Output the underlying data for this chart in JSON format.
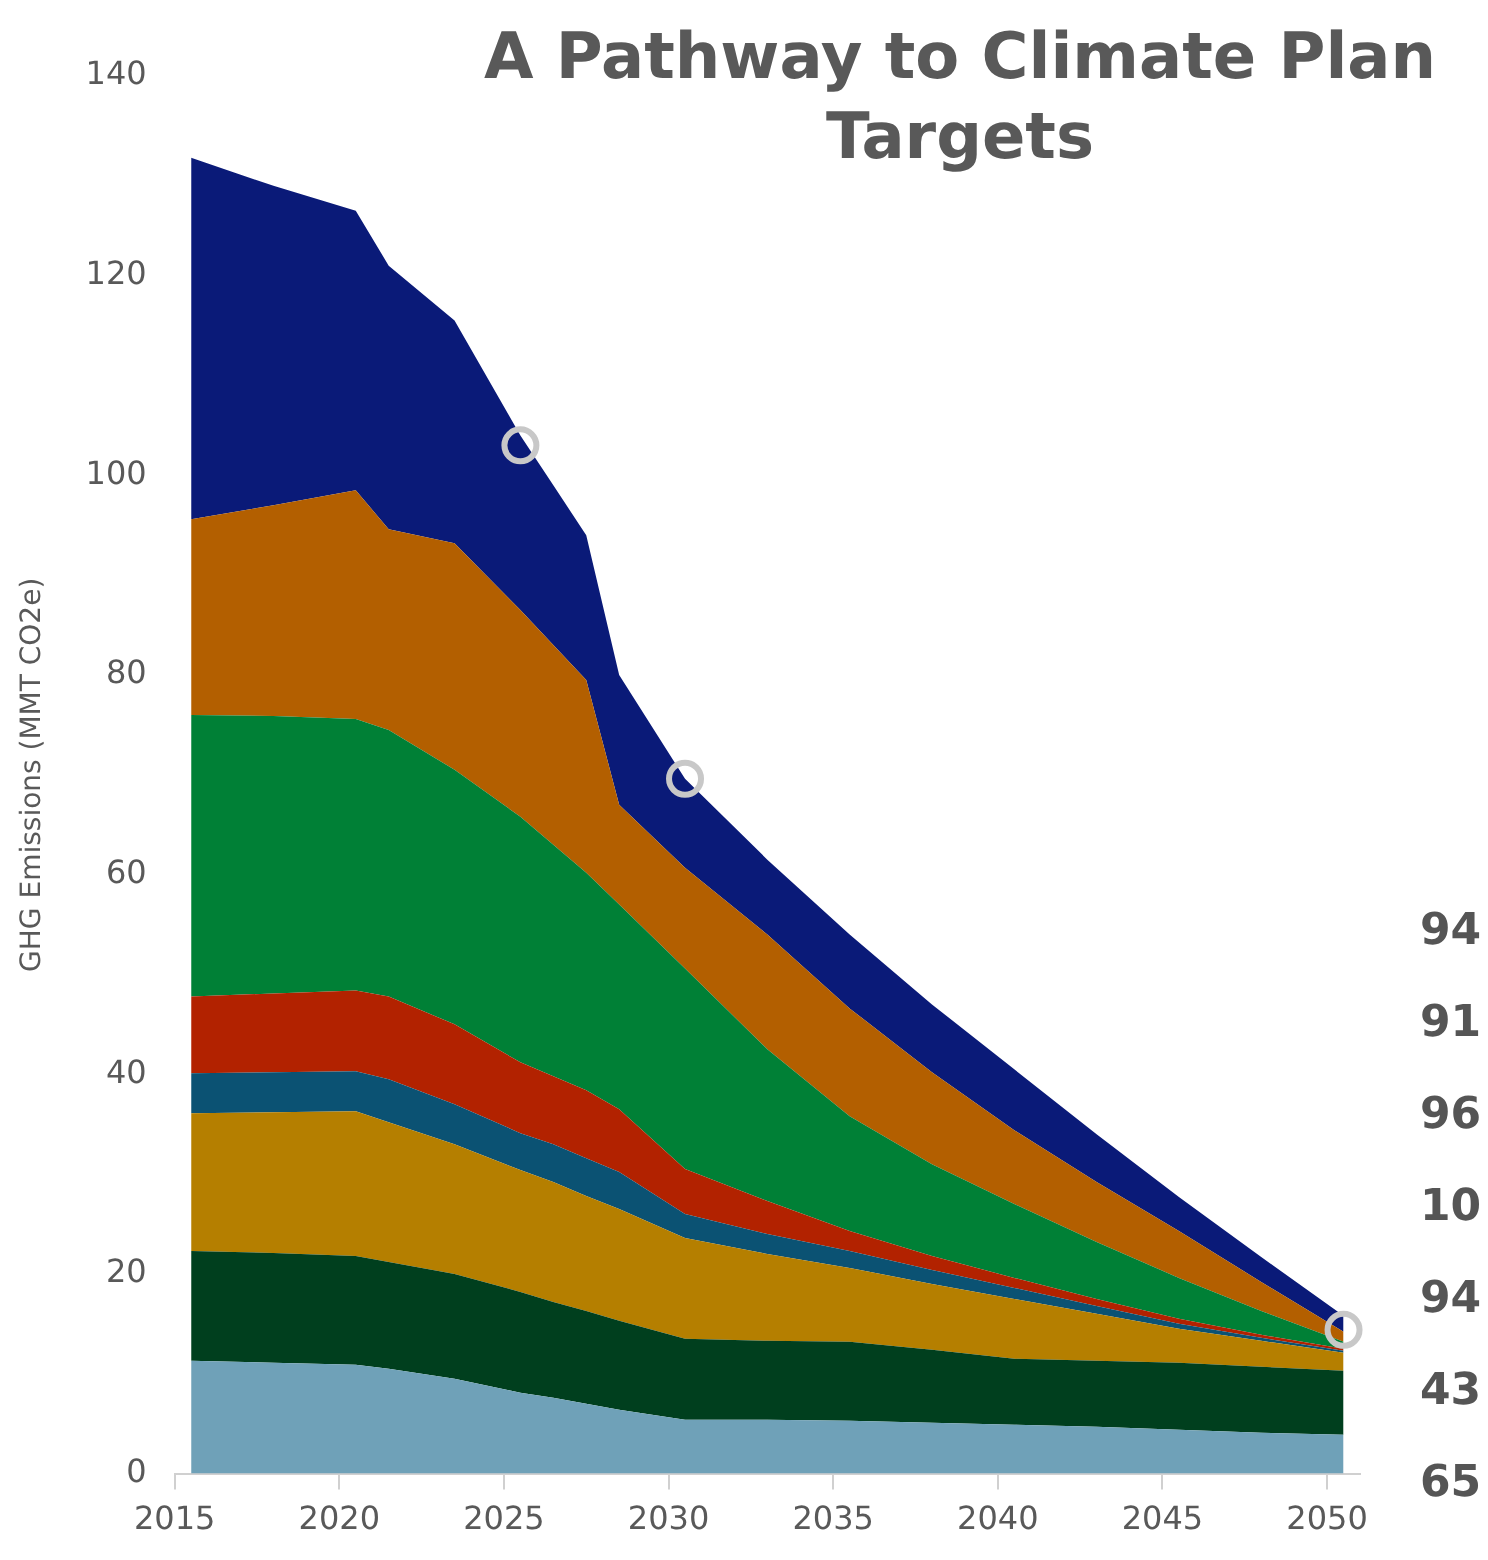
{
  "chart_data": {
    "type": "area",
    "title": "A Pathway to Climate Plan Targets",
    "ylabel": "GHG Emissions (MMT CO2e)",
    "stacked": true,
    "x": [
      2015.5,
      2018,
      2020.5,
      2021.5,
      2023.5,
      2025.5,
      2026.5,
      2027.5,
      2028.5,
      2030.5,
      2033,
      2035.5,
      2038,
      2040.5,
      2043,
      2045.5,
      2048,
      2050.5
    ],
    "xlim": [
      2015,
      2051
    ],
    "xticks": [
      2015,
      2020,
      2025,
      2030,
      2035,
      2040,
      2045,
      2050
    ],
    "ylim": [
      0,
      140
    ],
    "yticks": [
      0,
      20,
      40,
      60,
      80,
      100,
      120,
      140
    ],
    "series": [
      {
        "color": "#6fa1b8",
        "values": [
          11.3,
          11.1,
          10.9,
          10.5,
          9.5,
          8.1,
          7.6,
          7.0,
          6.4,
          5.4,
          5.4,
          5.3,
          5.1,
          4.9,
          4.7,
          4.4,
          4.1,
          3.9
        ]
      },
      {
        "color": "#003f1e",
        "values": [
          11.0,
          11.0,
          10.9,
          10.7,
          10.5,
          10.1,
          9.6,
          9.3,
          8.9,
          8.1,
          7.9,
          7.9,
          7.3,
          6.6,
          6.6,
          6.7,
          6.6,
          6.4
        ]
      },
      {
        "color": "#b57f00",
        "values": [
          13.8,
          14.1,
          14.5,
          14.0,
          13.0,
          12.2,
          12.0,
          11.5,
          11.2,
          10.1,
          8.7,
          7.4,
          6.6,
          6.0,
          4.7,
          3.4,
          2.6,
          1.8
        ]
      },
      {
        "color": "#0b5273",
        "values": [
          4.0,
          4.0,
          4.0,
          4.3,
          4.0,
          3.7,
          3.8,
          3.8,
          3.7,
          2.4,
          2.0,
          1.7,
          1.4,
          1.1,
          0.8,
          0.5,
          0.3,
          0.2
        ]
      },
      {
        "color": "#b22200",
        "values": [
          7.7,
          7.9,
          8.1,
          8.3,
          8.0,
          7.1,
          6.8,
          6.8,
          6.3,
          4.5,
          3.3,
          2.0,
          1.4,
          1.0,
          0.7,
          0.5,
          0.3,
          0.2
        ]
      },
      {
        "color": "#008036",
        "values": [
          28.2,
          27.8,
          27.2,
          26.7,
          25.5,
          24.6,
          23.2,
          21.8,
          20.5,
          20.1,
          15.2,
          11.5,
          9.2,
          7.4,
          5.7,
          4.1,
          2.4,
          0.7
        ]
      },
      {
        "color": "#b35f00",
        "values": [
          19.6,
          21.1,
          22.9,
          20.1,
          22.7,
          20.7,
          20.0,
          19.3,
          10.0,
          10.1,
          11.5,
          10.8,
          9.2,
          7.4,
          6.0,
          4.7,
          2.9,
          1.0
        ]
      },
      {
        "color": "#0a1a78",
        "values": [
          36.2,
          32.0,
          28.0,
          26.4,
          22.3,
          17.5,
          16.0,
          14.5,
          13.0,
          8.9,
          7.5,
          7.4,
          6.8,
          6.1,
          4.8,
          3.4,
          2.5,
          1.6
        ]
      },
      {
        "type": "scatter",
        "marker": "circle",
        "color": "#c8c8c8",
        "x": [
          2025.5,
          2030.5,
          2050.5
        ],
        "values": [
          103,
          69.6,
          14.4
        ]
      }
    ],
    "annotations": [
      "94",
      "91",
      "96",
      "10",
      "94",
      "43",
      "65"
    ]
  }
}
